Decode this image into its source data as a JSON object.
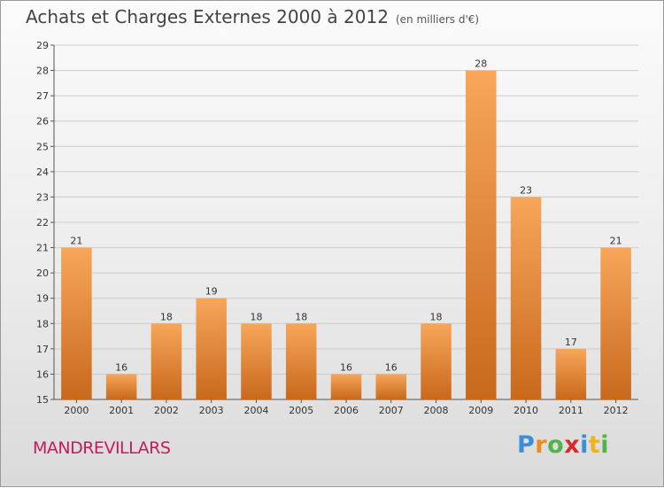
{
  "title": "Achats et Charges Externes 2000 à 2012",
  "subtitle": "(en milliers d'€)",
  "location": "MANDREVILLARS",
  "brand": {
    "letters": [
      "P",
      "r",
      "o",
      "x",
      "i",
      "t",
      "i"
    ],
    "colors": [
      "#3a8fd8",
      "#f08a1c",
      "#53b34a",
      "#d62b2b",
      "#3a8fd8",
      "#f0b21c",
      "#53b34a"
    ]
  },
  "colors": {
    "bar_light": "#f7a65a",
    "bar_dark": "#c8691c",
    "axis": "#555555",
    "grid": "#cccccc",
    "text": "#333333"
  },
  "chart_data": {
    "type": "bar",
    "categories": [
      "2000",
      "2001",
      "2002",
      "2003",
      "2004",
      "2005",
      "2006",
      "2007",
      "2008",
      "2009",
      "2010",
      "2011",
      "2012"
    ],
    "values": [
      21,
      16,
      18,
      19,
      18,
      18,
      16,
      16,
      18,
      28,
      23,
      17,
      21
    ],
    "ylim": [
      15,
      29
    ],
    "yticks": [
      15,
      16,
      17,
      18,
      19,
      20,
      21,
      22,
      23,
      24,
      25,
      26,
      27,
      28,
      29
    ],
    "grid": true
  }
}
